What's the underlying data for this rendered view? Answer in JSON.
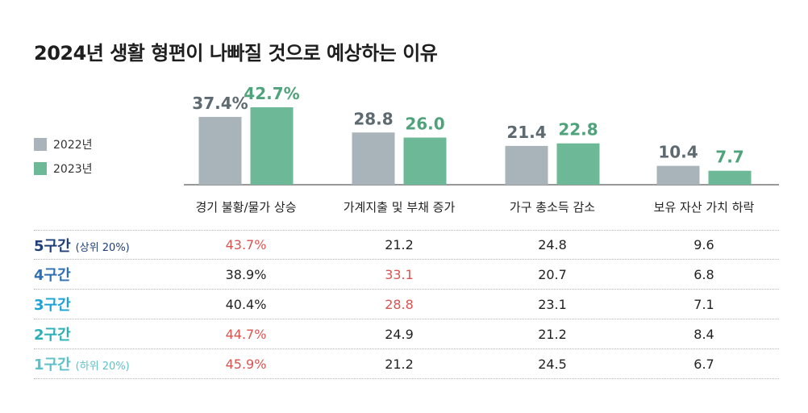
{
  "title": "2024년 생활 형편이 나빠질 것으로 예상하는 이유",
  "legend": [
    {
      "label": "2022년",
      "color": "#a9b3ba"
    },
    {
      "label": "2023년",
      "color": "#6db896"
    }
  ],
  "chart_data": {
    "type": "bar",
    "title": "2024년 생활 형편이 나빠질 것으로 예상하는 이유",
    "categories": [
      "경기 불황/물가 상승",
      "가계지출 및 부채 증가",
      "가구 총소득 감소",
      "보유 자산 가치 하락"
    ],
    "series": [
      {
        "name": "2022년",
        "values": [
          37.4,
          28.8,
          21.4,
          10.4
        ],
        "labels": [
          "37.4%",
          "28.8",
          "21.4",
          "10.4"
        ],
        "color": "#a9b3ba",
        "label_color": "#5e6a72"
      },
      {
        "name": "2023년",
        "values": [
          42.7,
          26.0,
          22.8,
          7.7
        ],
        "labels": [
          "42.7%",
          "26.0",
          "22.8",
          "7.7"
        ],
        "color": "#6db896",
        "label_color": "#4fa37b"
      }
    ],
    "ylim": [
      0,
      45
    ],
    "legend_position": "left",
    "grid": false,
    "table": {
      "rows": [
        {
          "label": "5구간",
          "sub": "(상위 20%)",
          "label_color": "#1f3f7a",
          "values": [
            "43.7%",
            "21.2",
            "24.8",
            "9.6"
          ],
          "highlight": [
            0
          ]
        },
        {
          "label": "4구간",
          "sub": "",
          "label_color": "#2f6fb5",
          "values": [
            "38.9%",
            "33.1",
            "20.7",
            "6.8"
          ],
          "highlight": [
            1
          ]
        },
        {
          "label": "3구간",
          "sub": "",
          "label_color": "#1aa3d6",
          "values": [
            "40.4%",
            "28.8",
            "23.1",
            "7.1"
          ],
          "highlight": [
            1
          ]
        },
        {
          "label": "2구간",
          "sub": "",
          "label_color": "#2bb0b5",
          "values": [
            "44.7%",
            "24.9",
            "21.2",
            "8.4"
          ],
          "highlight": [
            0
          ]
        },
        {
          "label": "1구간",
          "sub": "(하위 20%)",
          "label_color": "#5fc0c8",
          "values": [
            "45.9%",
            "21.2",
            "24.5",
            "6.7"
          ],
          "highlight": [
            0
          ]
        }
      ],
      "highlight_color": "#d9534f"
    }
  }
}
